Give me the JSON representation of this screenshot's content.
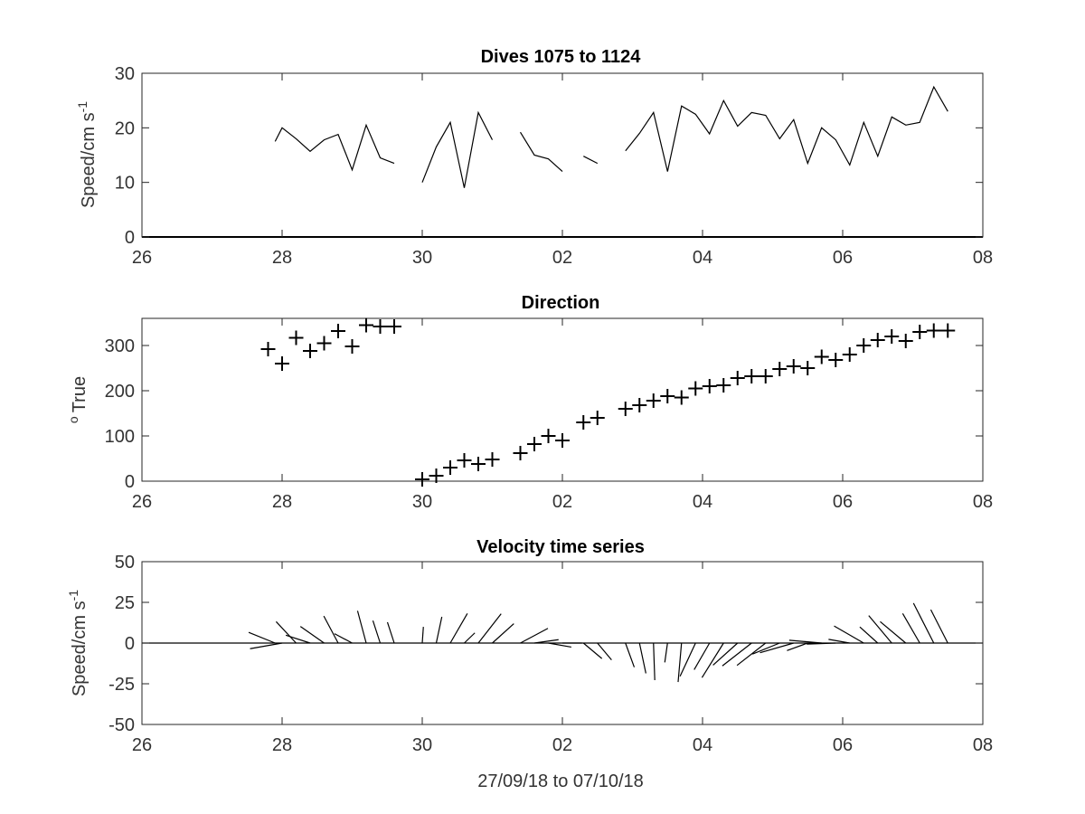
{
  "chart_data": [
    {
      "type": "line",
      "title": "Dives 1075 to 1124",
      "ylabel": "Speed/cm s",
      "ylabel_sup": "-1",
      "ylim": [
        0,
        30
      ],
      "yticks": [
        "0",
        "10",
        "20",
        "30"
      ],
      "xlim": [
        0,
        12
      ],
      "xticks": [
        "26",
        "28",
        "30",
        "02",
        "04",
        "06",
        "08"
      ],
      "segments": [
        [
          [
            1.9,
            17.5
          ],
          [
            2.0,
            20
          ],
          [
            2.2,
            18
          ],
          [
            2.4,
            15.7
          ],
          [
            2.6,
            17.8
          ],
          [
            2.8,
            18.8
          ],
          [
            3.0,
            12.3
          ],
          [
            3.2,
            20.5
          ],
          [
            3.4,
            14.5
          ],
          [
            3.6,
            13.5
          ]
        ],
        [
          [
            4.0,
            10
          ],
          [
            4.2,
            16.5
          ],
          [
            4.4,
            21
          ],
          [
            4.6,
            9
          ],
          [
            4.8,
            22.8
          ],
          [
            5.0,
            17.8
          ]
        ],
        [
          [
            5.4,
            19.2
          ],
          [
            5.6,
            15
          ],
          [
            5.8,
            14.3
          ],
          [
            6.0,
            12
          ]
        ],
        [
          [
            6.3,
            14.8
          ],
          [
            6.5,
            13.5
          ]
        ],
        [
          [
            6.9,
            15.8
          ],
          [
            7.1,
            19
          ],
          [
            7.3,
            22.8
          ],
          [
            7.5,
            12
          ],
          [
            7.7,
            24
          ],
          [
            7.9,
            22.5
          ],
          [
            8.1,
            18.9
          ],
          [
            8.3,
            25
          ],
          [
            8.5,
            20.3
          ],
          [
            8.7,
            22.8
          ],
          [
            8.9,
            22.3
          ],
          [
            9.1,
            18
          ],
          [
            9.3,
            21.5
          ],
          [
            9.5,
            13.5
          ],
          [
            9.7,
            20
          ],
          [
            9.9,
            17.8
          ],
          [
            10.1,
            13.2
          ],
          [
            10.3,
            21
          ],
          [
            10.5,
            14.8
          ],
          [
            10.7,
            22
          ],
          [
            10.9,
            20.5
          ],
          [
            11.1,
            21
          ],
          [
            11.3,
            27.5
          ],
          [
            11.5,
            23
          ]
        ]
      ]
    },
    {
      "type": "scatter",
      "title": "Direction",
      "ylabel": "True",
      "ylabel_prefix": "o",
      "ylim": [
        0,
        360
      ],
      "yticks": [
        "0",
        "100",
        "200",
        "300"
      ],
      "xlim": [
        0,
        12
      ],
      "xticks": [
        "26",
        "28",
        "30",
        "02",
        "04",
        "06",
        "08"
      ],
      "points": [
        [
          1.8,
          292
        ],
        [
          2.0,
          260
        ],
        [
          2.2,
          317
        ],
        [
          2.4,
          288
        ],
        [
          2.6,
          305
        ],
        [
          2.8,
          332
        ],
        [
          3.0,
          298
        ],
        [
          3.2,
          345
        ],
        [
          3.4,
          342
        ],
        [
          3.6,
          342
        ],
        [
          4.0,
          4
        ],
        [
          4.2,
          12
        ],
        [
          4.4,
          30
        ],
        [
          4.6,
          46
        ],
        [
          4.8,
          38
        ],
        [
          5.0,
          48
        ],
        [
          5.4,
          62
        ],
        [
          5.6,
          82
        ],
        [
          5.8,
          100
        ],
        [
          6.0,
          90
        ],
        [
          6.3,
          130
        ],
        [
          6.5,
          140
        ],
        [
          6.9,
          160
        ],
        [
          7.1,
          168
        ],
        [
          7.3,
          178
        ],
        [
          7.5,
          188
        ],
        [
          7.7,
          185
        ],
        [
          7.9,
          205
        ],
        [
          8.1,
          210
        ],
        [
          8.3,
          212
        ],
        [
          8.5,
          228
        ],
        [
          8.7,
          232
        ],
        [
          8.9,
          232
        ],
        [
          9.1,
          248
        ],
        [
          9.3,
          254
        ],
        [
          9.5,
          250
        ],
        [
          9.7,
          275
        ],
        [
          9.9,
          268
        ],
        [
          10.1,
          280
        ],
        [
          10.3,
          300
        ],
        [
          10.5,
          312
        ],
        [
          10.7,
          320
        ],
        [
          10.9,
          310
        ],
        [
          11.1,
          330
        ],
        [
          11.3,
          333
        ],
        [
          11.5,
          333
        ]
      ]
    },
    {
      "type": "line",
      "title": "Velocity time series",
      "ylabel": "Speed/cm s",
      "ylabel_sup": "-1",
      "xlabel": "27/09/18 to 07/10/18",
      "ylim": [
        -50,
        50
      ],
      "yticks": [
        "-50",
        "-25",
        "0",
        "25",
        "50"
      ],
      "xlim": [
        0,
        12
      ],
      "xticks": [
        "26",
        "28",
        "30",
        "02",
        "04",
        "06",
        "08"
      ],
      "sticks": [
        [
          1.9,
          17.5,
          292
        ],
        [
          2.0,
          20,
          260
        ],
        [
          2.2,
          18,
          317
        ],
        [
          2.4,
          15.7,
          288
        ],
        [
          2.6,
          17.8,
          305
        ],
        [
          2.8,
          18.8,
          332
        ],
        [
          3.0,
          12.3,
          298
        ],
        [
          3.2,
          20.5,
          345
        ],
        [
          3.4,
          14.5,
          342
        ],
        [
          3.6,
          13.5,
          342
        ],
        [
          4.0,
          10,
          4
        ],
        [
          4.2,
          16.5,
          12
        ],
        [
          4.4,
          21,
          30
        ],
        [
          4.6,
          9,
          46
        ],
        [
          4.8,
          22.8,
          38
        ],
        [
          5.0,
          17.8,
          48
        ],
        [
          5.4,
          19.2,
          62
        ],
        [
          5.6,
          15,
          82
        ],
        [
          5.8,
          14.3,
          100
        ],
        [
          6.0,
          12,
          90
        ],
        [
          6.3,
          14.8,
          130
        ],
        [
          6.5,
          13.5,
          140
        ],
        [
          6.9,
          15.8,
          160
        ],
        [
          7.1,
          19,
          168
        ],
        [
          7.3,
          22.8,
          178
        ],
        [
          7.5,
          12,
          188
        ],
        [
          7.7,
          24,
          185
        ],
        [
          7.9,
          22.5,
          205
        ],
        [
          8.1,
          18.9,
          210
        ],
        [
          8.3,
          25,
          212
        ],
        [
          8.5,
          20.3,
          228
        ],
        [
          8.7,
          22.8,
          232
        ],
        [
          8.9,
          22.3,
          232
        ],
        [
          9.1,
          18,
          248
        ],
        [
          9.3,
          21.5,
          254
        ],
        [
          9.5,
          13.5,
          250
        ],
        [
          9.7,
          20,
          275
        ],
        [
          9.9,
          17.8,
          268
        ],
        [
          10.1,
          13.2,
          280
        ],
        [
          10.3,
          21,
          300
        ],
        [
          10.5,
          14.8,
          312
        ],
        [
          10.7,
          22,
          320
        ],
        [
          10.9,
          20.5,
          310
        ],
        [
          11.1,
          21,
          330
        ],
        [
          11.3,
          27.5,
          333
        ],
        [
          11.5,
          23,
          333
        ]
      ]
    }
  ]
}
